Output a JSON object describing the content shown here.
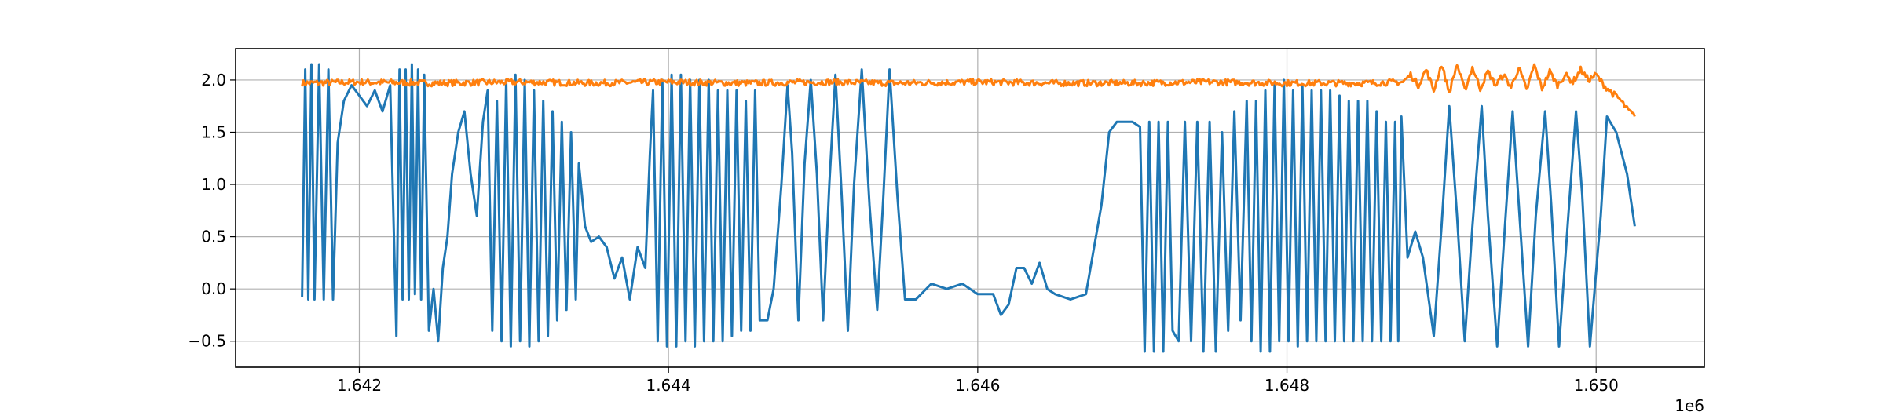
{
  "chart_data": {
    "type": "line",
    "title": "",
    "xlabel": "",
    "ylabel": "",
    "x_offset_text": "1e6",
    "x_scale": 1000000,
    "xlim": [
      1641200,
      1650700
    ],
    "ylim": [
      -0.75,
      2.3
    ],
    "x_ticks": [
      1642000,
      1644000,
      1646000,
      1648000,
      1650000
    ],
    "x_tick_labels": [
      "1.642",
      "1.644",
      "1.646",
      "1.648",
      "1.650"
    ],
    "y_ticks": [
      -0.5,
      0.0,
      0.5,
      1.0,
      1.5,
      2.0
    ],
    "y_tick_labels": [
      "−0.5",
      "0.0",
      "0.5",
      "1.0",
      "1.5",
      "2.0"
    ],
    "grid": true,
    "legend": "none",
    "series": [
      {
        "color": "#1f77b4",
        "points": [
          [
            1641630,
            -0.08
          ],
          [
            1641650,
            2.1
          ],
          [
            1641670,
            -0.1
          ],
          [
            1641690,
            2.15
          ],
          [
            1641710,
            -0.1
          ],
          [
            1641740,
            2.15
          ],
          [
            1641770,
            -0.1
          ],
          [
            1641800,
            2.1
          ],
          [
            1641830,
            -0.1
          ],
          [
            1641860,
            1.4
          ],
          [
            1641900,
            1.8
          ],
          [
            1641950,
            1.95
          ],
          [
            1642000,
            1.85
          ],
          [
            1642050,
            1.75
          ],
          [
            1642100,
            1.9
          ],
          [
            1642150,
            1.7
          ],
          [
            1642200,
            1.95
          ],
          [
            1642240,
            -0.45
          ],
          [
            1642260,
            2.1
          ],
          [
            1642280,
            -0.1
          ],
          [
            1642300,
            2.1
          ],
          [
            1642320,
            -0.1
          ],
          [
            1642340,
            2.15
          ],
          [
            1642360,
            -0.05
          ],
          [
            1642380,
            2.1
          ],
          [
            1642400,
            -0.1
          ],
          [
            1642420,
            2.05
          ],
          [
            1642450,
            -0.4
          ],
          [
            1642480,
            0.0
          ],
          [
            1642510,
            -0.5
          ],
          [
            1642540,
            0.2
          ],
          [
            1642570,
            0.5
          ],
          [
            1642600,
            1.1
          ],
          [
            1642640,
            1.5
          ],
          [
            1642680,
            1.7
          ],
          [
            1642720,
            1.1
          ],
          [
            1642760,
            0.7
          ],
          [
            1642800,
            1.6
          ],
          [
            1642830,
            1.9
          ],
          [
            1642860,
            -0.4
          ],
          [
            1642890,
            1.8
          ],
          [
            1642920,
            -0.5
          ],
          [
            1642950,
            2.0
          ],
          [
            1642980,
            -0.55
          ],
          [
            1643010,
            2.05
          ],
          [
            1643040,
            -0.5
          ],
          [
            1643070,
            2.0
          ],
          [
            1643100,
            -0.55
          ],
          [
            1643130,
            1.9
          ],
          [
            1643160,
            -0.5
          ],
          [
            1643190,
            1.8
          ],
          [
            1643220,
            -0.45
          ],
          [
            1643250,
            1.7
          ],
          [
            1643280,
            -0.3
          ],
          [
            1643310,
            1.6
          ],
          [
            1643340,
            -0.2
          ],
          [
            1643370,
            1.5
          ],
          [
            1643400,
            -0.1
          ],
          [
            1643420,
            1.2
          ],
          [
            1643460,
            0.6
          ],
          [
            1643500,
            0.45
          ],
          [
            1643550,
            0.5
          ],
          [
            1643600,
            0.4
          ],
          [
            1643650,
            0.1
          ],
          [
            1643700,
            0.3
          ],
          [
            1643750,
            -0.1
          ],
          [
            1643800,
            0.4
          ],
          [
            1643850,
            0.2
          ],
          [
            1643880,
            1.3
          ],
          [
            1643900,
            1.9
          ],
          [
            1643930,
            -0.5
          ],
          [
            1643960,
            2.0
          ],
          [
            1643990,
            -0.55
          ],
          [
            1644020,
            2.05
          ],
          [
            1644050,
            -0.55
          ],
          [
            1644080,
            2.05
          ],
          [
            1644110,
            -0.5
          ],
          [
            1644140,
            2.0
          ],
          [
            1644170,
            -0.55
          ],
          [
            1644200,
            2.0
          ],
          [
            1644230,
            -0.5
          ],
          [
            1644260,
            2.0
          ],
          [
            1644290,
            -0.5
          ],
          [
            1644320,
            1.9
          ],
          [
            1644350,
            -0.5
          ],
          [
            1644380,
            1.9
          ],
          [
            1644410,
            -0.45
          ],
          [
            1644440,
            1.9
          ],
          [
            1644470,
            -0.4
          ],
          [
            1644500,
            1.8
          ],
          [
            1644530,
            -0.4
          ],
          [
            1644560,
            1.9
          ],
          [
            1644590,
            -0.3
          ],
          [
            1644640,
            -0.3
          ],
          [
            1644680,
            0.0
          ],
          [
            1644730,
            1.0
          ],
          [
            1644770,
            1.95
          ],
          [
            1644800,
            1.3
          ],
          [
            1644840,
            -0.3
          ],
          [
            1644880,
            1.2
          ],
          [
            1644920,
            2.0
          ],
          [
            1644960,
            1.1
          ],
          [
            1645000,
            -0.3
          ],
          [
            1645040,
            1.0
          ],
          [
            1645080,
            2.05
          ],
          [
            1645120,
            0.9
          ],
          [
            1645160,
            -0.4
          ],
          [
            1645200,
            1.0
          ],
          [
            1645250,
            2.1
          ],
          [
            1645300,
            0.8
          ],
          [
            1645350,
            -0.2
          ],
          [
            1645390,
            0.9
          ],
          [
            1645430,
            2.1
          ],
          [
            1645480,
            0.9
          ],
          [
            1645530,
            -0.1
          ],
          [
            1645600,
            -0.1
          ],
          [
            1645700,
            0.05
          ],
          [
            1645800,
            0.0
          ],
          [
            1645900,
            0.05
          ],
          [
            1646000,
            -0.05
          ],
          [
            1646100,
            -0.05
          ],
          [
            1646150,
            -0.25
          ],
          [
            1646200,
            -0.15
          ],
          [
            1646250,
            0.2
          ],
          [
            1646300,
            0.2
          ],
          [
            1646350,
            0.05
          ],
          [
            1646400,
            0.25
          ],
          [
            1646450,
            0.0
          ],
          [
            1646500,
            -0.05
          ],
          [
            1646600,
            -0.1
          ],
          [
            1646700,
            -0.05
          ],
          [
            1646800,
            0.8
          ],
          [
            1646850,
            1.5
          ],
          [
            1646900,
            1.6
          ],
          [
            1647000,
            1.6
          ],
          [
            1647050,
            1.55
          ],
          [
            1647080,
            -0.6
          ],
          [
            1647110,
            1.6
          ],
          [
            1647140,
            -0.6
          ],
          [
            1647170,
            1.6
          ],
          [
            1647200,
            -0.6
          ],
          [
            1647230,
            1.6
          ],
          [
            1647260,
            -0.4
          ],
          [
            1647300,
            -0.5
          ],
          [
            1647340,
            1.6
          ],
          [
            1647380,
            -0.5
          ],
          [
            1647420,
            1.6
          ],
          [
            1647460,
            -0.6
          ],
          [
            1647500,
            1.6
          ],
          [
            1647540,
            -0.6
          ],
          [
            1647580,
            1.5
          ],
          [
            1647620,
            -0.4
          ],
          [
            1647660,
            1.7
          ],
          [
            1647700,
            -0.3
          ],
          [
            1647740,
            1.8
          ],
          [
            1647770,
            -0.5
          ],
          [
            1647800,
            1.8
          ],
          [
            1647830,
            -0.6
          ],
          [
            1647860,
            1.9
          ],
          [
            1647890,
            -0.6
          ],
          [
            1647920,
            1.95
          ],
          [
            1647950,
            -0.5
          ],
          [
            1647980,
            2.0
          ],
          [
            1648010,
            -0.5
          ],
          [
            1648040,
            1.9
          ],
          [
            1648070,
            -0.55
          ],
          [
            1648100,
            1.95
          ],
          [
            1648130,
            -0.5
          ],
          [
            1648160,
            1.9
          ],
          [
            1648190,
            -0.5
          ],
          [
            1648220,
            1.9
          ],
          [
            1648250,
            -0.5
          ],
          [
            1648280,
            1.9
          ],
          [
            1648310,
            -0.5
          ],
          [
            1648340,
            1.85
          ],
          [
            1648370,
            -0.5
          ],
          [
            1648400,
            1.8
          ],
          [
            1648430,
            -0.5
          ],
          [
            1648460,
            1.8
          ],
          [
            1648490,
            -0.5
          ],
          [
            1648520,
            1.8
          ],
          [
            1648550,
            -0.5
          ],
          [
            1648580,
            1.7
          ],
          [
            1648610,
            -0.5
          ],
          [
            1648640,
            1.6
          ],
          [
            1648670,
            -0.5
          ],
          [
            1648700,
            1.6
          ],
          [
            1648720,
            -0.5
          ],
          [
            1648740,
            1.65
          ],
          [
            1648780,
            0.3
          ],
          [
            1648830,
            0.55
          ],
          [
            1648880,
            0.3
          ],
          [
            1648950,
            -0.45
          ],
          [
            1649000,
            0.6
          ],
          [
            1649050,
            1.75
          ],
          [
            1649100,
            0.7
          ],
          [
            1649150,
            -0.5
          ],
          [
            1649200,
            0.6
          ],
          [
            1649260,
            1.75
          ],
          [
            1649300,
            0.7
          ],
          [
            1649360,
            -0.55
          ],
          [
            1649410,
            0.6
          ],
          [
            1649460,
            1.7
          ],
          [
            1649500,
            0.8
          ],
          [
            1649560,
            -0.55
          ],
          [
            1649610,
            0.7
          ],
          [
            1649670,
            1.7
          ],
          [
            1649710,
            0.8
          ],
          [
            1649760,
            -0.55
          ],
          [
            1649820,
            0.7
          ],
          [
            1649870,
            1.7
          ],
          [
            1649910,
            0.9
          ],
          [
            1649960,
            -0.55
          ],
          [
            1650030,
            0.7
          ],
          [
            1650070,
            1.65
          ],
          [
            1650130,
            1.5
          ],
          [
            1650200,
            1.1
          ],
          [
            1650250,
            0.6
          ]
        ]
      },
      {
        "color": "#ff7f0e",
        "points": [
          [
            1641630,
            1.97
          ],
          [
            1642000,
            1.98
          ],
          [
            1642500,
            1.97
          ],
          [
            1643000,
            1.98
          ],
          [
            1643500,
            1.97
          ],
          [
            1644000,
            1.98
          ],
          [
            1644500,
            1.97
          ],
          [
            1645000,
            1.98
          ],
          [
            1645500,
            1.97
          ],
          [
            1646000,
            1.98
          ],
          [
            1646500,
            1.97
          ],
          [
            1647000,
            1.97
          ],
          [
            1647500,
            1.98
          ],
          [
            1648000,
            1.97
          ],
          [
            1648500,
            1.97
          ],
          [
            1648750,
            1.98
          ],
          [
            1648800,
            2.05
          ],
          [
            1648850,
            1.95
          ],
          [
            1648900,
            2.1
          ],
          [
            1648950,
            1.9
          ],
          [
            1649000,
            2.15
          ],
          [
            1649050,
            1.88
          ],
          [
            1649100,
            2.15
          ],
          [
            1649150,
            1.9
          ],
          [
            1649200,
            2.12
          ],
          [
            1649250,
            1.92
          ],
          [
            1649300,
            2.08
          ],
          [
            1649350,
            1.95
          ],
          [
            1649400,
            2.05
          ],
          [
            1649450,
            1.93
          ],
          [
            1649500,
            2.12
          ],
          [
            1649550,
            1.9
          ],
          [
            1649600,
            2.14
          ],
          [
            1649650,
            1.92
          ],
          [
            1649700,
            2.08
          ],
          [
            1649750,
            1.95
          ],
          [
            1649800,
            2.05
          ],
          [
            1649850,
            1.98
          ],
          [
            1649900,
            2.1
          ],
          [
            1649950,
            2.0
          ],
          [
            1650000,
            2.05
          ],
          [
            1650050,
            1.95
          ],
          [
            1650100,
            1.88
          ],
          [
            1650150,
            1.82
          ],
          [
            1650200,
            1.72
          ],
          [
            1650250,
            1.65
          ]
        ],
        "noise": 0.03
      }
    ]
  }
}
